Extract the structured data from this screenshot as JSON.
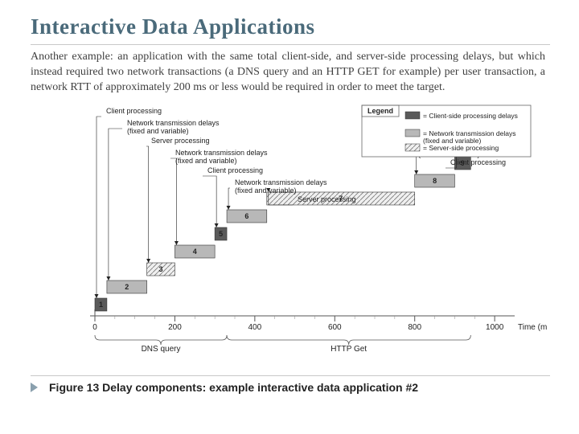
{
  "title": "Interactive Data Applications",
  "paragraph": "Another example: an application with the same total client-side, and server-side processing delays, but which instead required two network transactions (a DNS query and an HTTP GET for example) per user transaction, a network RTT of approximately 200 ms or less would be required in order to meet the target.",
  "caption": "Figure 13 Delay components: example interactive data application #2",
  "chart": {
    "type": "stepped-bar-timeline",
    "background": "#ffffff",
    "xlim": [
      0,
      1050
    ],
    "xtick_major_step": 200,
    "xtick_minor_step": 50,
    "xaxis_label": "Time (ms)",
    "yheight_levels": 9,
    "fontsize_labels": 9,
    "fontsize_axis": 10,
    "colors": {
      "client": "#5a5a5a",
      "network": "#b8b8b8",
      "server_fill": "#f0f0f0",
      "server_hatch": "#777777",
      "axis": "#555555",
      "text": "#222222",
      "bar_border": "#333333"
    },
    "boxes": [
      {
        "id": 1,
        "start": 0,
        "end": 30,
        "type": "client",
        "label": "Client processing"
      },
      {
        "id": 2,
        "start": 30,
        "end": 130,
        "type": "network",
        "label": "Network transmission delays\n(fixed and variable)"
      },
      {
        "id": 3,
        "start": 130,
        "end": 200,
        "type": "server",
        "label": "Server processing"
      },
      {
        "id": 4,
        "start": 200,
        "end": 300,
        "type": "network",
        "label": "Network transmission delays\n(fixed and variable)"
      },
      {
        "id": 5,
        "start": 300,
        "end": 330,
        "type": "client",
        "label": "Client processing"
      },
      {
        "id": 6,
        "start": 330,
        "end": 430,
        "type": "network",
        "label": "Network transmission delays\n(fixed and variable)"
      },
      {
        "id": 7,
        "start": 430,
        "end": 800,
        "type": "server",
        "label": "Server processing"
      },
      {
        "id": 8,
        "start": 800,
        "end": 900,
        "type": "network",
        "label": "Network transmission delays\n(fixed and variable)"
      },
      {
        "id": 9,
        "start": 900,
        "end": 940,
        "type": "client",
        "label": "Client processing"
      }
    ],
    "brackets": [
      {
        "label": "DNS query",
        "start": 0,
        "end": 330
      },
      {
        "label": "HTTP Get",
        "start": 330,
        "end": 940
      }
    ],
    "legend": {
      "title": "Legend",
      "items": [
        {
          "swatch": "client",
          "text": "= Client-side processing delays"
        },
        {
          "swatch": "network",
          "text": "= Network transmission delays\n   (fixed and variable)"
        },
        {
          "swatch": "server",
          "text": "= Server-side processing"
        }
      ],
      "box_color": "#666666",
      "bg": "#ffffff"
    }
  }
}
